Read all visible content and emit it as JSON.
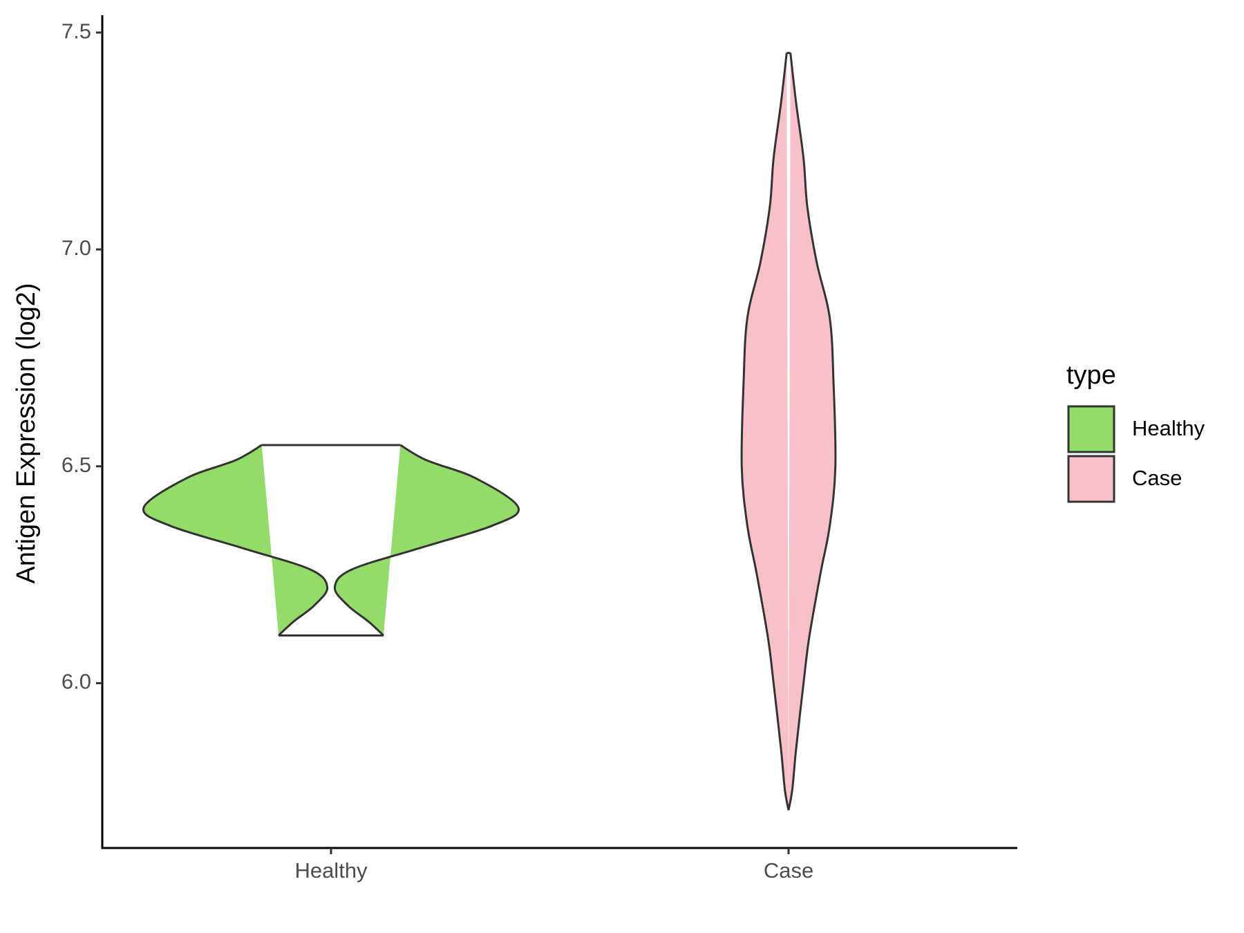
{
  "chart_data": {
    "type": "violin",
    "ylabel": "Antigen Expression (log2)",
    "categories": [
      "Healthy",
      "Case"
    ],
    "legend_title": "type",
    "ylim": [
      5.62,
      7.54
    ],
    "yticks": [
      {
        "value": 6,
        "label": "6.0"
      },
      6.5,
      {
        "value": 7,
        "label": "7.0"
      },
      7.5
    ],
    "series": [
      {
        "name": "Healthy",
        "color": "#93dc6a",
        "y": [
          6.549,
          6.514,
          6.473,
          6.405,
          6.363,
          6.311,
          6.262,
          6.221,
          6.179,
          6.142,
          6.11
        ],
        "density": [
          0.37,
          0.51,
          0.77,
          1.0,
          0.86,
          0.47,
          0.11,
          0.02,
          0.09,
          0.2,
          0.28
        ]
      },
      {
        "name": "Case",
        "color": "#f8c0cb",
        "y": [
          7.453,
          7.339,
          7.21,
          7.099,
          6.971,
          6.842,
          6.694,
          6.499,
          6.363,
          6.252,
          6.105,
          6.0,
          5.847,
          5.755,
          5.707
        ],
        "density": [
          0.01,
          0.04,
          0.08,
          0.1,
          0.15,
          0.22,
          0.24,
          0.25,
          0.22,
          0.17,
          0.11,
          0.08,
          0.04,
          0.02,
          0.0
        ]
      }
    ]
  }
}
